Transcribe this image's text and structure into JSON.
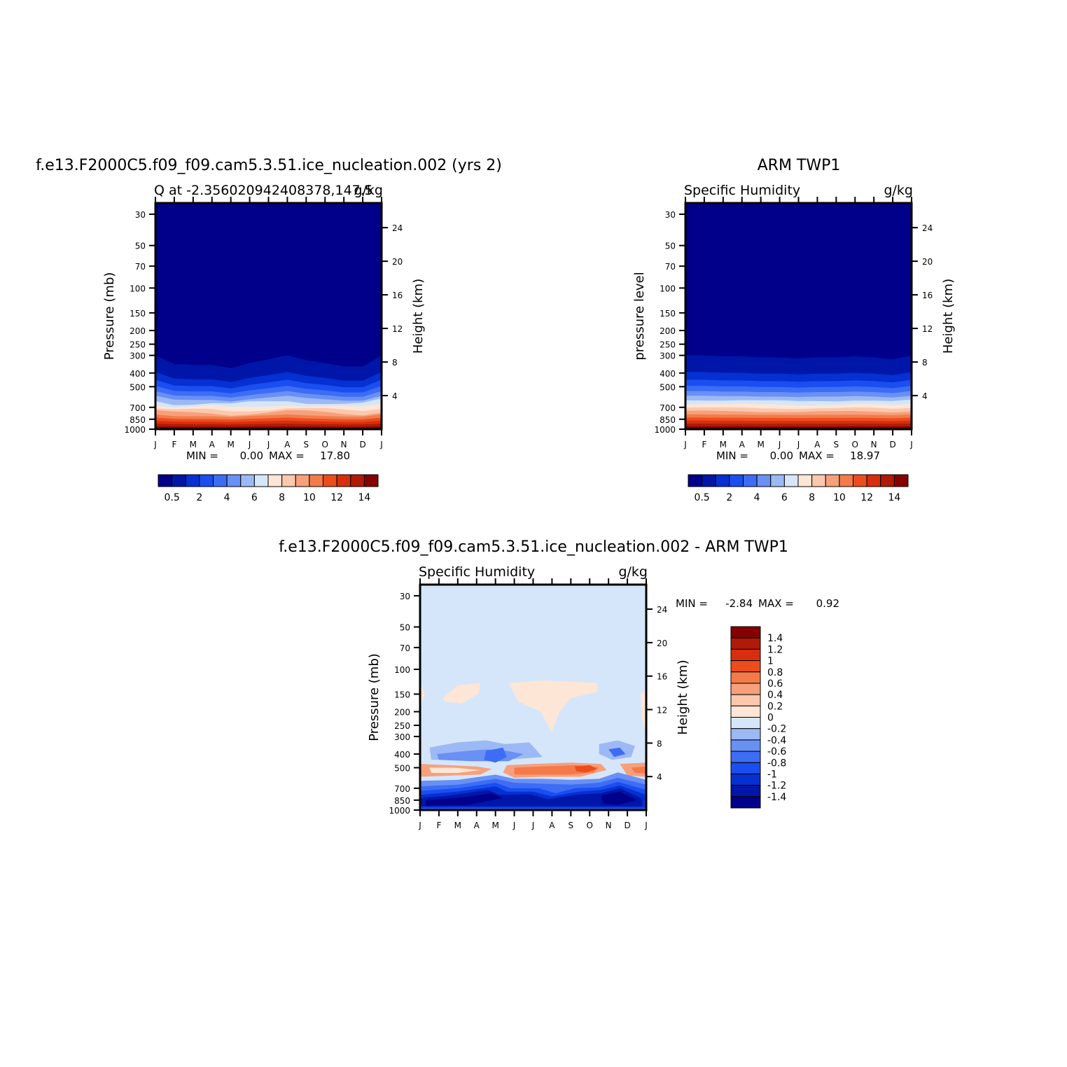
{
  "chart_data": [
    {
      "type": "heatmap",
      "title": "f.e13.F2000C5.f09_f09.cam5.3.51.ice_nucleation.002 (yrs 2)",
      "left_subtitle": "Q at -2.356020942408378,147.5",
      "right_subtitle": "g/kg",
      "ylabel": "Pressure (mb)",
      "right_ylabel": "Height (km)",
      "x_ticks": [
        "J",
        "F",
        "M",
        "A",
        "M",
        "J",
        "J",
        "A",
        "S",
        "O",
        "N",
        "D",
        "J"
      ],
      "y_ticks": [
        "30",
        "50",
        "70",
        "100",
        "150",
        "200",
        "250",
        "300",
        "400",
        "500",
        "700",
        "850",
        "1000"
      ],
      "height_ticks": [
        "24",
        "20",
        "16",
        "12",
        "8",
        "4"
      ],
      "min_label": "MIN =",
      "min_value": "0.00",
      "max_label": "MAX =",
      "max_value": "17.80",
      "colorbar_labels": [
        "0.5",
        "2",
        "4",
        "6",
        "8",
        "10",
        "12",
        "14"
      ],
      "tropopause_pressure_by_month": [
        300,
        345,
        350,
        350,
        370,
        340,
        320,
        300,
        325,
        340,
        360,
        360,
        300
      ]
    },
    {
      "type": "heatmap",
      "title": "ARM TWP1",
      "left_subtitle": "Specific Humidity",
      "right_subtitle": "g/kg",
      "ylabel": "pressure level",
      "right_ylabel": "Height (km)",
      "x_ticks": [
        "J",
        "F",
        "M",
        "A",
        "M",
        "J",
        "J",
        "A",
        "S",
        "O",
        "N",
        "D",
        "J"
      ],
      "y_ticks": [
        "30",
        "50",
        "70",
        "100",
        "150",
        "200",
        "250",
        "300",
        "400",
        "500",
        "700",
        "850",
        "1000"
      ],
      "height_ticks": [
        "24",
        "20",
        "16",
        "12",
        "8",
        "4"
      ],
      "min_label": "MIN =",
      "min_value": "0.00",
      "max_label": "MAX =",
      "max_value": "18.97",
      "colorbar_labels": [
        "0.5",
        "2",
        "4",
        "6",
        "8",
        "10",
        "12",
        "14"
      ],
      "tropopause_pressure_by_month": [
        300,
        300,
        305,
        305,
        310,
        310,
        315,
        310,
        310,
        305,
        310,
        320,
        300
      ]
    },
    {
      "type": "heatmap",
      "title": "f.e13.F2000C5.f09_f09.cam5.3.51.ice_nucleation.002 - ARM TWP1",
      "left_subtitle": "Specific Humidity",
      "right_subtitle": "g/kg",
      "ylabel": "Pressure (mb)",
      "right_ylabel": "Height (km)",
      "x_ticks": [
        "J",
        "F",
        "M",
        "A",
        "M",
        "J",
        "J",
        "A",
        "S",
        "O",
        "N",
        "D",
        "J"
      ],
      "y_ticks": [
        "30",
        "50",
        "70",
        "100",
        "150",
        "200",
        "250",
        "300",
        "400",
        "500",
        "700",
        "850",
        "1000"
      ],
      "height_ticks": [
        "24",
        "20",
        "16",
        "12",
        "8",
        "4"
      ],
      "min_label": "MIN =",
      "min_value": "-2.84",
      "max_label": "MAX =",
      "max_value": "0.92",
      "colorbar_labels": [
        "1.4",
        "1.2",
        "1",
        "0.8",
        "0.6",
        "0.4",
        "0.2",
        "0",
        "-0.2",
        "-0.4",
        "-0.6",
        "-0.8",
        "-1",
        "-1.2",
        "-1.4"
      ]
    }
  ],
  "colors": {
    "humidity_scale": [
      "#00008a",
      "#0016a8",
      "#0530d2",
      "#1a4ef0",
      "#3d6cf5",
      "#6890f5",
      "#9db9f5",
      "#d5e6fb",
      "#fde6d5",
      "#fcc8ad",
      "#f7a07c",
      "#f57a4a",
      "#ec4d1d",
      "#d92e0d",
      "#b01a08",
      "#850000"
    ],
    "difference_scale": [
      "#00008a",
      "#0016a8",
      "#0530d2",
      "#1a4ef0",
      "#3d6cf5",
      "#6890f5",
      "#9db9f5",
      "#d5e6fb",
      "#fde6d5",
      "#fcc8ad",
      "#f7a07c",
      "#f57a4a",
      "#ec4d1d",
      "#d92e0d",
      "#b01a08",
      "#850000"
    ]
  }
}
